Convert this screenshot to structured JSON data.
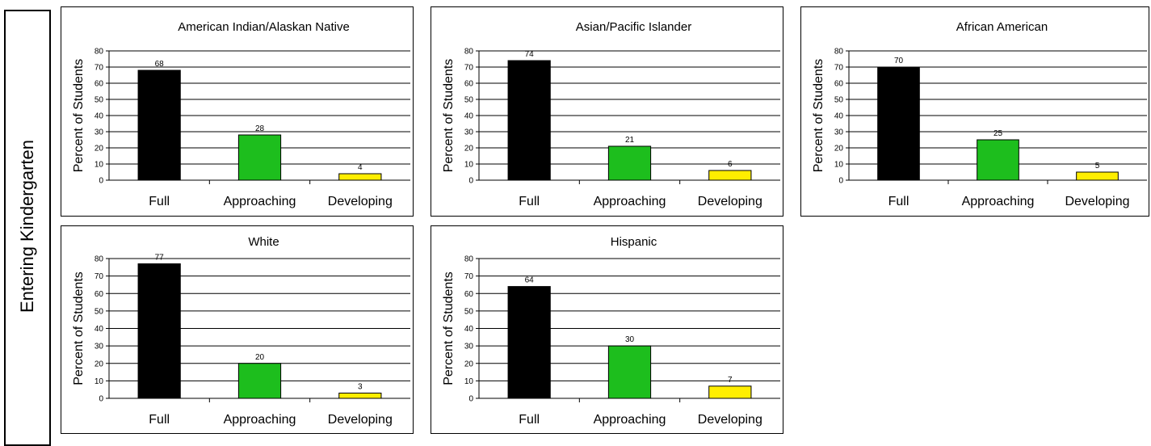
{
  "side_label": "Entering Kindergarten",
  "colors": {
    "Full": "#000000",
    "Approaching": "#1dbe1d",
    "Developing": "#ffee00"
  },
  "chart_data": [
    {
      "type": "bar",
      "title": "American Indian/Alaskan Native",
      "ylabel": "Percent of Students",
      "categories": [
        "Full",
        "Approaching",
        "Developing"
      ],
      "values": [
        68,
        28,
        4
      ],
      "ylim": [
        0,
        80
      ],
      "yticks": [
        0,
        10,
        20,
        30,
        40,
        50,
        60,
        70,
        80
      ],
      "grid": true
    },
    {
      "type": "bar",
      "title": "Asian/Pacific Islander",
      "ylabel": "Percent of Students",
      "categories": [
        "Full",
        "Approaching",
        "Developing"
      ],
      "values": [
        74,
        21,
        6
      ],
      "ylim": [
        0,
        80
      ],
      "yticks": [
        0,
        10,
        20,
        30,
        40,
        50,
        60,
        70,
        80
      ],
      "grid": true
    },
    {
      "type": "bar",
      "title": "African American",
      "ylabel": "Percent of Students",
      "categories": [
        "Full",
        "Approaching",
        "Developing"
      ],
      "values": [
        70,
        25,
        5
      ],
      "ylim": [
        0,
        80
      ],
      "yticks": [
        0,
        10,
        20,
        30,
        40,
        50,
        60,
        70,
        80
      ],
      "grid": true
    },
    {
      "type": "bar",
      "title": "White",
      "ylabel": "Percent of Students",
      "categories": [
        "Full",
        "Approaching",
        "Developing"
      ],
      "values": [
        77,
        20,
        3
      ],
      "ylim": [
        0,
        80
      ],
      "yticks": [
        0,
        10,
        20,
        30,
        40,
        50,
        60,
        70,
        80
      ],
      "grid": true
    },
    {
      "type": "bar",
      "title": "Hispanic",
      "ylabel": "Percent of Students",
      "categories": [
        "Full",
        "Approaching",
        "Developing"
      ],
      "values": [
        64,
        30,
        7
      ],
      "ylim": [
        0,
        80
      ],
      "yticks": [
        0,
        10,
        20,
        30,
        40,
        50,
        60,
        70,
        80
      ],
      "grid": true
    }
  ]
}
